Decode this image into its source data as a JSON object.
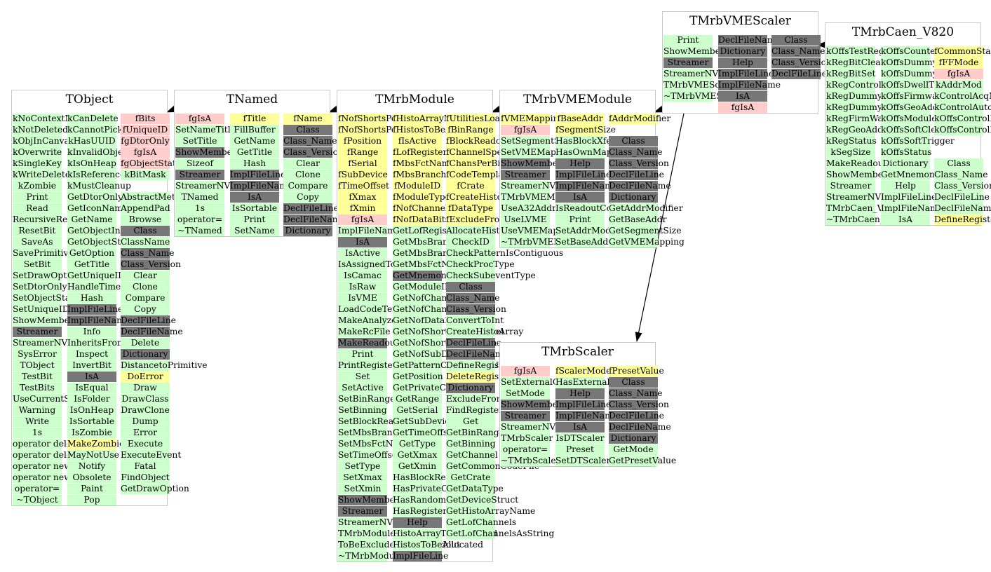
{
  "colors": {
    "method": "#ccffcc",
    "protected_member": "#ffcccc",
    "data_member": "#ffff99",
    "dictionary_member": "#777777",
    "border": "#c8c8c8",
    "arrow": "#000000"
  },
  "classes": [
    {
      "id": "tobject",
      "title": "TObject",
      "columns": [
        [
          "m:kNoContextMenu",
          "m:kNotDeleted",
          "m:kObjInCanvas",
          "m:kOverwrite",
          "m:kSingleKey",
          "m:kWriteDelete",
          "m:kZombie",
          "m:Print",
          "m:Read",
          "m:RecursiveRemove",
          "m:ResetBit",
          "m:SaveAs",
          "m:SavePrimitive",
          "m:SetBit",
          "m:SetDrawOption",
          "m:SetDtorOnly",
          "m:SetObjectStat",
          "m:SetUniqueID",
          "m:ShowMembers",
          "d:Streamer",
          "m:StreamerNVirtual",
          "m:SysError",
          "m:TObject",
          "m:TestBit",
          "m:TestBits",
          "m:UseCurrentStyle",
          "m:Warning",
          "m:Write",
          "m:1s",
          "m:operator delete",
          "m:operator delete[]",
          "m:operator new",
          "m:operator new[]",
          "m:operator=",
          "m:~TObject"
        ],
        [
          "m:kCanDelete",
          "m:kCannotPick",
          "m:kHasUUID",
          "m:kInvalidObject",
          "m:kIsOnHeap",
          "m:kIsReferenced",
          "m:kMustCleanup",
          "m:GetDtorOnly",
          "m:GetIconName",
          "m:GetName",
          "m:GetObjectInfo",
          "m:GetObjectStat",
          "m:GetOption",
          "m:GetTitle",
          "m:GetUniqueID",
          "m:HandleTimer",
          "m:Hash",
          "d:ImplFileLine",
          "d:ImplFileName",
          "m:Info",
          "m:InheritsFrom",
          "m:Inspect",
          "m:InvertBit",
          "d:IsA",
          "m:IsEqual",
          "m:IsFolder",
          "m:IsOnHeap",
          "m:IsSortable",
          "m:IsZombie",
          "y:MakeZombie",
          "m:MayNotUse",
          "m:Notify",
          "m:Obsolete",
          "m:Paint",
          "m:Pop"
        ],
        [
          "p:fBits",
          "p:fUniqueID",
          "p:fgDtorOnly",
          "p:fgIsA",
          "p:fgObjectStat",
          "m:kBitMask",
          "",
          "m:AbstractMethod",
          "m:AppendPad",
          "m:Browse",
          "d:Class",
          "m:ClassName",
          "d:Class_Name",
          "d:Class_Version",
          "m:Clear",
          "m:Clone",
          "m:Compare",
          "m:Copy",
          "d:DeclFileLine",
          "d:DeclFileName",
          "m:Delete",
          "d:Dictionary",
          "m:DistancetoPrimitive",
          "y:DoError",
          "m:Draw",
          "m:DrawClass",
          "m:DrawClone",
          "m:Dump",
          "m:Error",
          "m:Execute",
          "m:ExecuteEvent",
          "m:Fatal",
          "m:FindObject",
          "m:GetDrawOption"
        ]
      ]
    },
    {
      "id": "tnamed",
      "title": "TNamed",
      "columns": [
        [
          "p:fgIsA",
          "m:SetNameTitle",
          "m:SetTitle",
          "d:ShowMembers",
          "m:Sizeof",
          "d:Streamer",
          "m:StreamerNVirtual",
          "m:TNamed",
          "m:1s",
          "m:operator=",
          "m:~TNamed"
        ],
        [
          "y:fTitle",
          "m:FillBuffer",
          "m:GetName",
          "m:GetTitle",
          "m:Hash",
          "d:ImplFileLine",
          "d:ImplFileName",
          "d:IsA",
          "m:IsSortable",
          "m:Print",
          "m:SetName"
        ],
        [
          "y:fName",
          "d:Class",
          "d:Class_Name",
          "d:Class_Version",
          "m:Clear",
          "m:Clone",
          "m:Compare",
          "m:Copy",
          "d:DeclFileLine",
          "d:DeclFileName",
          "d:Dictionary"
        ]
      ]
    },
    {
      "id": "tmrbmodule",
      "title": "TMrbModule",
      "columns": [
        [
          "y:fNofShortsPerChannel",
          "y:fNofShortsPerDatum",
          "y:fPosition",
          "y:fRange",
          "y:fSerial",
          "y:fSubDevice",
          "y:fTimeOffset",
          "y:fXmax",
          "y:fXmin",
          "p:fgIsA",
          "m:ImplFileName",
          "d:IsA",
          "m:IsActive",
          "m:IsAssignedToBranch",
          "m:IsCamac",
          "m:IsRaw",
          "m:IsVME",
          "m:LoadCodeTemplates",
          "m:MakeAnalyzeCode",
          "m:MakeRcFile",
          "d:MakeReadoutCode",
          "m:Print",
          "m:PrintRegister",
          "m:Set",
          "m:SetActive",
          "m:SetBinRange",
          "m:SetBinning",
          "m:SetBlockReadout",
          "m:SetMbsBranch",
          "m:SetMbsFctName",
          "m:SetTimeOffset",
          "m:SetType",
          "m:SetXmax",
          "m:SetXmin",
          "d:ShowMembers",
          "d:Streamer",
          "m:StreamerNVirtual",
          "m:TMrbModule",
          "m:ToBeExcludedFromReadout",
          "m:~TMrbModule"
        ],
        [
          "y:fHistoArrayName",
          "y:fHistosToBeAllocated",
          "y:fIsActive",
          "y:fLofRegisters",
          "y:fMbsFctName",
          "y:fMbsBranch",
          "y:fModuleID",
          "y:fModuleType",
          "y:fNofChannels",
          "y:fNofDataBits",
          "m:GetLofRegisters",
          "m:GetMbsBranch",
          "m:GetMbsBranchNo",
          "m:GetMbsFctName",
          "d:GetMnemonic",
          "m:GetModuleID",
          "m:GetNofChannels",
          "m:GetNofChannelsUsed",
          "m:GetNofDataBits",
          "m:GetNofShortsPerChannel",
          "m:GetNofShortsPerDatum",
          "m:GetNofSubDevices",
          "m:GetPatternOfChannelsUsed",
          "m:GetPosition",
          "m:GetPrivateCodeFile",
          "m:GetRange",
          "m:GetSerial",
          "m:GetSubDevice",
          "m:GetTimeOffset",
          "m:GetType",
          "m:GetXmax",
          "m:GetXmin",
          "m:HasBlockReadout",
          "m:HasPrivateCode",
          "m:HasRandomReadout",
          "m:HasRegisters",
          "d:Help",
          "m:HistoArrayToBeCreated",
          "m:HistosToBeAllocated",
          "d:ImplFileLine"
        ],
        [
          "y:fUtilitiesLoaded",
          "y:fBinRange",
          "y:fBlockReadout",
          "y:fChannelSpec",
          "y:fChansPerBin",
          "y:fCodeTemplates",
          "y:fCrate",
          "y:fCreateHistoArray",
          "y:fDataType",
          "y:fExcludeFromReadout",
          "m:AllocateHistograms",
          "m:CheckID",
          "m:CheckPatternIsContiguous",
          "m:CheckProcType",
          "m:CheckSubeventType",
          "d:Class",
          "d:Class_Name",
          "d:Class_Version",
          "m:ConvertToInt",
          "m:CreateHistoArray",
          "d:DeclFileLine",
          "d:DeclFileName",
          "m:DefineRegisters",
          "y:DeleteRegisters",
          "d:Dictionary",
          "m:ExcludeFromReadout",
          "m:FindRegister",
          "m:Get",
          "m:GetBinRange",
          "m:GetBinning",
          "m:GetChannel",
          "m:GetCommonCodeFile",
          "m:GetCrate",
          "m:GetDataType",
          "m:GetDeviceStruct",
          "m:GetHistoArrayName",
          "m:GetLofChannels",
          "m:GetLofChannelsAsString"
        ]
      ]
    },
    {
      "id": "tmrbvmemodule",
      "title": "TMrbVMEModule",
      "columns": [
        [
          "y:fVMEMapping",
          "p:fgIsA",
          "m:SetSegmentSize",
          "m:SetVMEMapping",
          "d:ShowMembers",
          "d:Streamer",
          "m:StreamerNVirtual",
          "m:TMrbVMEModule",
          "m:UseA32Addressing",
          "m:UseLVME",
          "m:UseVMEMapping",
          "m:~TMrbVMEModule"
        ],
        [
          "y:fBaseAddr",
          "y:fSegmentSize",
          "m:HasBlockXfer",
          "m:HasOwnMapping",
          "d:Help",
          "d:ImplFileLine",
          "d:ImplFileName",
          "d:IsA",
          "m:IsReadoutCode",
          "m:Print",
          "m:SetAddrModifier",
          "m:SetBaseAddr"
        ],
        [
          "y:fAddrModifier",
          "",
          "d:Class",
          "d:Class_Name",
          "d:Class_Version",
          "d:DeclFileLine",
          "d:DeclFileName",
          "d:Dictionary",
          "m:GetAddrModifier",
          "m:GetBaseAddr",
          "m:GetSegmentSize",
          "m:GetVMEMapping"
        ]
      ]
    },
    {
      "id": "tmrbscaler",
      "title": "TMrbScaler",
      "columns": [
        [
          "p:fgIsA",
          "m:SetExternalGate",
          "m:SetMode",
          "d:ShowMembers",
          "d:Streamer",
          "m:StreamerNVirtual",
          "m:TMrbScaler",
          "m:operator=",
          "m:~TMrbScaler"
        ],
        [
          "y:fScalerMode",
          "m:HasExternalGate",
          "d:Help",
          "d:ImplFileLine",
          "d:ImplFileName",
          "d:IsA",
          "m:IsDTScaler",
          "m:Preset",
          "m:SetDTScaler"
        ],
        [
          "y:fPresetValue",
          "d:Class",
          "d:Class_Name",
          "d:Class_Version",
          "d:DeclFileLine",
          "d:DeclFileName",
          "d:Dictionary",
          "m:GetMode",
          "m:GetPresetValue"
        ]
      ]
    },
    {
      "id": "tmrbvmescaler",
      "title": "TMrbVMEScaler",
      "columns": [
        [
          "m:Print",
          "m:ShowMembers",
          "d:Streamer",
          "m:StreamerNVirtual",
          "m:TMrbVMEScaler",
          "m:~TMrbVMEScaler"
        ],
        [
          "d:DeclFileName",
          "d:Dictionary",
          "d:Help",
          "d:ImplFileLine",
          "d:ImplFileName",
          "d:IsA",
          "p:fgIsA"
        ],
        [
          "d:Class",
          "d:Class_Name",
          "d:Class_Version",
          "d:DeclFileLine"
        ]
      ]
    },
    {
      "id": "tmrbcaen",
      "title": "TMrbCaen_V820",
      "columns": [
        [
          "m:kOffsTestReg",
          "m:kRegBitClear",
          "m:kRegBitSet",
          "m:kRegControl",
          "m:kRegDummy16",
          "m:kRegDummy32",
          "m:kRegFirmWare",
          "m:kRegGeoAddr",
          "m:kRegStatus",
          "m:kSegSize",
          "m:MakeReadoutCode",
          "m:ShowMembers",
          "m:Streamer",
          "m:StreamerNVirtual",
          "m:TMrbCaen_V820",
          "m:~TMrbCaen_V820"
        ],
        [
          "m:kOffsCounter0",
          "m:kOffsDummy16",
          "m:kOffsDummy32",
          "m:kOffsDwellTime",
          "m:kOffsFirmware",
          "m:kOffsGeoAddr",
          "m:kOffsModuleReset",
          "m:kOffsSoftClear",
          "m:kOffsSoftTrigger",
          "m:kOffsStatus",
          "m:Dictionary",
          "m:GetMnemonic",
          "m:Help",
          "m:ImplFileLine",
          "m:ImplFileName",
          "m:IsA"
        ],
        [
          "y:fCommonStart",
          "y:fFFMode",
          "p:fgIsA",
          "m:kAddrMod",
          "m:kControlAcqMode",
          "m:kControlAutoReset",
          "m:kOffsControlBitClear",
          "m:kOffsControlBitSet",
          "",
          "",
          "m:Class",
          "m:Class_Name",
          "m:Class_Version",
          "m:DeclFileLine",
          "m:DeclFileName",
          "y:DefineRegisters"
        ]
      ]
    }
  ]
}
